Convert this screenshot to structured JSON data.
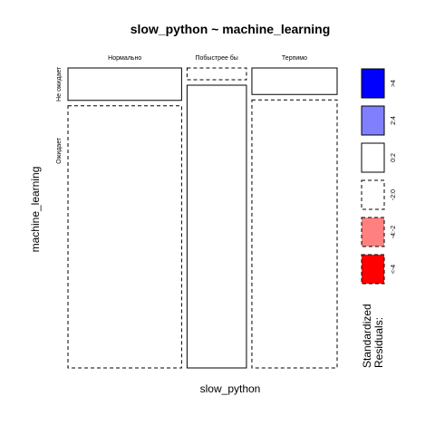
{
  "chart_data": {
    "type": "mosaic",
    "title": "slow_python ~ machine_learning",
    "xlabel": "slow_python",
    "ylabel": "machine_learning",
    "x_categories": [
      "Нормально",
      "Побыстрее бы",
      "Терпимо"
    ],
    "y_categories": [
      "Не ожидает",
      "Ожидает"
    ],
    "column_proportions": [
      0.44,
      0.23,
      0.33
    ],
    "cells": [
      {
        "x": "Нормально",
        "y": "Не ожидает",
        "proportion": 0.11,
        "residual_class": "0:2"
      },
      {
        "x": "Нормально",
        "y": "Ожидает",
        "proportion": 0.89,
        "residual_class": "-2:0"
      },
      {
        "x": "Побыстрее бы",
        "y": "Не ожидает",
        "proportion": 0.04,
        "residual_class": "-2:0"
      },
      {
        "x": "Побыстрее бы",
        "y": "Ожидает",
        "proportion": 0.96,
        "residual_class": "0:2"
      },
      {
        "x": "Терпимо",
        "y": "Не ожидает",
        "proportion": 0.09,
        "residual_class": "0:2"
      },
      {
        "x": "Терпимо",
        "y": "Ожидает",
        "proportion": 0.91,
        "residual_class": "-2:0"
      }
    ],
    "legend": {
      "title_line1": "Standardized",
      "title_line2": "Residuals:",
      "placement": "right",
      "items": [
        {
          "label": ">4",
          "color": "#0000ff",
          "line": "solid"
        },
        {
          "label": "2:4",
          "color": "#8080ff",
          "line": "solid"
        },
        {
          "label": "0:2",
          "color": "#ffffff",
          "line": "solid"
        },
        {
          "label": "-2:0",
          "color": "#ffffff",
          "line": "dashed"
        },
        {
          "label": "-4:-2",
          "color": "#ff8080",
          "line": "dashed"
        },
        {
          "label": "<-4",
          "color": "#ff0000",
          "line": "dashed"
        }
      ]
    }
  }
}
